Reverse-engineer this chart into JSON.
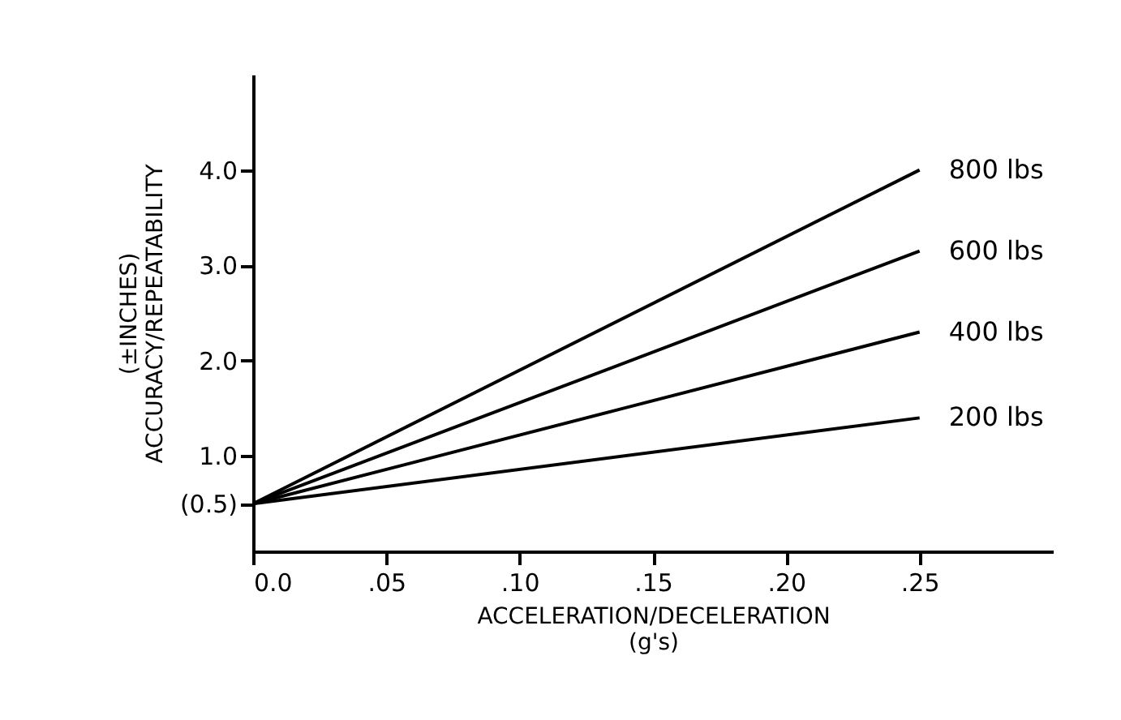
{
  "chart_data": {
    "type": "line",
    "xlabel": "ACCELERATION/DECELERATION\n(g's)",
    "ylabel": "(±INCHES)\nACCURACY/REPEATABILITY",
    "x": [
      0,
      0.25
    ],
    "series": [
      {
        "name": "800 lbs",
        "color": "#000000",
        "values": [
          0.5,
          4.0
        ]
      },
      {
        "name": "600 lbs",
        "color": "#000000",
        "values": [
          0.5,
          3.15
        ]
      },
      {
        "name": "400 lbs",
        "color": "#000000",
        "values": [
          0.5,
          2.3
        ]
      },
      {
        "name": "200 lbs",
        "color": "#000000",
        "values": [
          0.5,
          1.4
        ]
      }
    ],
    "xlim": [
      0,
      0.3
    ],
    "xticks": [
      {
        "value": 0,
        "label": "0.0"
      },
      {
        "value": 0.05,
        "label": ".05"
      },
      {
        "value": 0.1,
        "label": ".10"
      },
      {
        "value": 0.15,
        "label": ".15"
      },
      {
        "value": 0.2,
        "label": ".20"
      },
      {
        "value": 0.25,
        "label": ".25"
      }
    ],
    "ylim": [
      0,
      5
    ],
    "yticks": [
      {
        "value": 0.5,
        "label": "(0.5)"
      },
      {
        "value": 1,
        "label": "1.0"
      },
      {
        "value": 2,
        "label": "2.0"
      },
      {
        "value": 3,
        "label": "3.0"
      },
      {
        "value": 4,
        "label": "4.0"
      }
    ],
    "grid": false,
    "legend": false,
    "marker": "none",
    "line_style": "solid"
  }
}
